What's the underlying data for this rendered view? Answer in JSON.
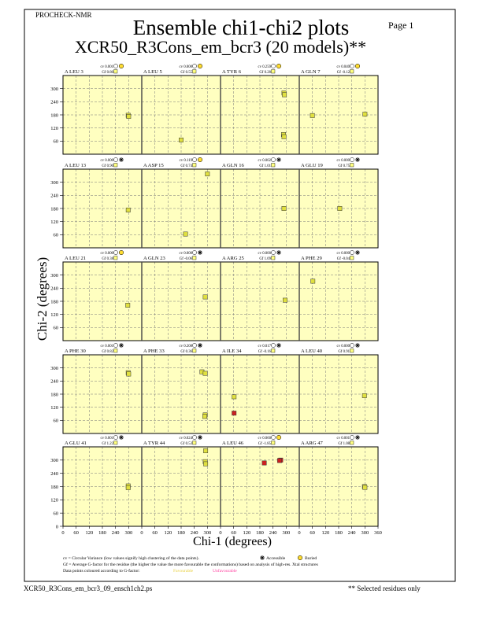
{
  "header": {
    "program": "PROCHECK-NMR",
    "page_label": "Page  1",
    "title": "Ensemble chi1-chi2 plots",
    "subtitle": "XCR50_R3Cons_em_bcr3 (20 models)**"
  },
  "footer": {
    "filename": "XCR50_R3Cons_em_bcr3_09_ensch1ch2.ps",
    "note": "** Selected residues only"
  },
  "legend": {
    "cv_text": "cv = Circular Variance (low values signify high clustering of the data points).",
    "accessible": "Accessible",
    "buried": "Buried",
    "gf_text": "Gf = Average G-factor for the residue (the higher the value the more favourable the conformations) based on analysis of high-res. Xtal structures",
    "colour_text": "Data points coloured according to G-factor:",
    "favourable": "Favourable",
    "unfavourable": "Unfavourable"
  },
  "colors": {
    "panel_bg": "#ffffc0",
    "point_yellow": "#e0e040",
    "point_red": "#cc2020",
    "favourable_text": "#e8d040",
    "unfavourable_text": "#ff40a0",
    "frame": "#000000"
  },
  "chart_data": {
    "type": "scatter",
    "xlabel": "Chi-1 (degrees)",
    "ylabel": "Chi-2 (degrees)",
    "xlim": [
      0,
      360
    ],
    "ylim": [
      0,
      360
    ],
    "x_ticks": [
      0,
      60,
      120,
      180,
      240,
      300,
      360
    ],
    "y_ticks": [
      0,
      60,
      120,
      180,
      240,
      300
    ],
    "x_tick_labels": [
      "0",
      "60",
      "120",
      "180",
      "240",
      "300",
      "0",
      "60",
      "120",
      "180",
      "240",
      "300",
      "0",
      "60",
      "120",
      "180",
      "240",
      "300",
      "0",
      "60",
      "120",
      "180",
      "240",
      "300",
      "360"
    ],
    "y_tick_labels": [
      "300",
      "240",
      "180",
      "120",
      "60",
      "0"
    ],
    "grid": true,
    "rows": [
      [
        {
          "label": "A LEU 3",
          "cv": "cv 0.001",
          "gf": "Gf 0.80",
          "access": "buried",
          "points": [
            [
              298,
              178,
              "y"
            ],
            [
              300,
              173,
              "y"
            ]
          ]
        },
        {
          "label": "A LEU 5",
          "cv": "cv 0.000",
          "gf": "Gf 0.55",
          "access": "buried",
          "points": [
            [
              180,
              65,
              "y"
            ]
          ]
        },
        {
          "label": "A TYR 6",
          "cv": "cv 0.259",
          "gf": "Gf 0.28",
          "access": "buried",
          "points": [
            [
              290,
              280,
              "y"
            ],
            [
              292,
              272,
              "y"
            ],
            [
              288,
              90,
              "y"
            ],
            [
              290,
              80,
              "y"
            ]
          ]
        },
        {
          "label": "A GLN 7",
          "cv": "cv 0.040",
          "gf": "Gf -0.12",
          "access": "buried",
          "points": [
            [
              60,
              177,
              "y"
            ],
            [
              300,
              183,
              "y"
            ]
          ]
        }
      ],
      [
        {
          "label": "A LEU 13",
          "cv": "cv 0.000",
          "gf": "Gf 0.90",
          "access": "accessible",
          "points": [
            [
              298,
              173,
              "y"
            ]
          ]
        },
        {
          "label": "A ASP 15",
          "cv": "cv 0.119",
          "gf": "Gf 0.74",
          "access": "buried",
          "points": [
            [
              200,
              63,
              "y"
            ],
            [
              300,
              338,
              "y"
            ]
          ]
        },
        {
          "label": "A GLN 16",
          "cv": "cv 0.002",
          "gf": "Gf 1.01",
          "access": "accessible",
          "points": [
            [
              290,
              180,
              "y"
            ]
          ]
        },
        {
          "label": "A GLU 19",
          "cv": "cv 0.000",
          "gf": "Gf 0.75",
          "access": "accessible",
          "points": [
            [
              185,
              180,
              "y"
            ]
          ]
        }
      ],
      [
        {
          "label": "A LEU 21",
          "cv": "cv 0.000",
          "gf": "Gf 0.38",
          "access": "buried",
          "points": [
            [
              296,
              162,
              "y"
            ]
          ]
        },
        {
          "label": "A GLN 23",
          "cv": "cv 0.000",
          "gf": "Gf -0.06",
          "access": "accessible",
          "points": [
            [
              290,
              200,
              "y"
            ]
          ]
        },
        {
          "label": "A ARG 25",
          "cv": "cv 0.000",
          "gf": "Gf 1.09",
          "access": "accessible",
          "points": [
            [
              295,
              185,
              "y"
            ]
          ]
        },
        {
          "label": "A PHE 29",
          "cv": "cv 0.000",
          "gf": "Gf -0.04",
          "access": "accessible",
          "points": [
            [
              62,
              272,
              "y"
            ]
          ]
        }
      ],
      [
        {
          "label": "A PHE 30",
          "cv": "cv 0.001",
          "gf": "Gf 0.82",
          "access": "accessible",
          "points": [
            [
              298,
              278,
              "y"
            ],
            [
              300,
              272,
              "y"
            ]
          ]
        },
        {
          "label": "A PHE 33",
          "cv": "cv 0.208",
          "gf": "Gf 0.36",
          "access": "accessible",
          "points": [
            [
              275,
              282,
              "y"
            ],
            [
              290,
              275,
              "y"
            ],
            [
              290,
              85,
              "y"
            ],
            [
              288,
              78,
              "y"
            ]
          ]
        },
        {
          "label": "A ILE 34",
          "cv": "cv 0.017",
          "gf": "Gf -0.16",
          "access": "accessible",
          "points": [
            [
              62,
              168,
              "y"
            ],
            [
              62,
              93,
              "r"
            ]
          ]
        },
        {
          "label": "A LEU 40",
          "cv": "cv 0.000",
          "gf": "Gf 0.91",
          "access": "accessible",
          "points": [
            [
              298,
              173,
              "y"
            ]
          ]
        }
      ],
      [
        {
          "label": "A GLU 41",
          "cv": "cv 0.001",
          "gf": "Gf 1.22",
          "access": "accessible",
          "points": [
            [
              298,
              183,
              "y"
            ],
            [
              298,
              175,
              "y"
            ]
          ]
        },
        {
          "label": "A TYR 44",
          "cv": "cv 0.024",
          "gf": "Gf 0.53",
          "access": "accessible",
          "points": [
            [
              292,
              342,
              "y"
            ],
            [
              290,
              293,
              "y"
            ],
            [
              292,
              283,
              "y"
            ]
          ]
        },
        {
          "label": "A LEU 46",
          "cv": "cv 0.060",
          "gf": "Gf -1.85",
          "access": "buried",
          "points": [
            [
              200,
              287,
              "r"
            ],
            [
              275,
              300,
              "r"
            ],
            [
              270,
              298,
              "r"
            ]
          ]
        },
        {
          "label": "A ARG 47",
          "cv": "cv 0.001",
          "gf": "Gf 1.08",
          "access": "accessible",
          "points": [
            [
              298,
              180,
              "y"
            ],
            [
              300,
              176,
              "y"
            ]
          ]
        }
      ]
    ]
  }
}
